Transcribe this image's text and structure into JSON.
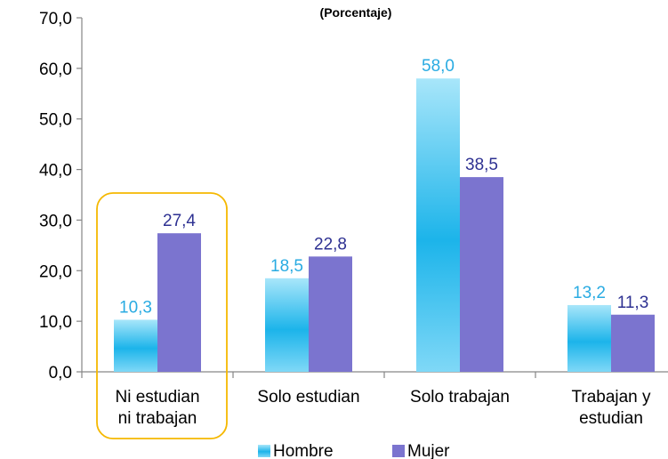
{
  "chart_data": {
    "type": "bar",
    "title": "(Porcentaje)",
    "categories": [
      [
        "Ni estudian",
        "ni trabajan"
      ],
      [
        "Solo estudian"
      ],
      [
        "Solo trabajan"
      ],
      [
        "Trabajan y",
        "estudian"
      ]
    ],
    "series": [
      {
        "name": "Hombre",
        "values": [
          10.3,
          18.5,
          58.0,
          13.2
        ],
        "color": "#1cb4ea",
        "label_color": "#29abe2"
      },
      {
        "name": "Mujer",
        "values": [
          27.4,
          22.8,
          38.5,
          11.3
        ],
        "color": "#7b74cf",
        "label_color": "#2e3192"
      }
    ],
    "ylim": [
      0,
      70
    ],
    "yticks": [
      0,
      10,
      20,
      30,
      40,
      50,
      60,
      70
    ],
    "tick_format": "comma-1-decimal",
    "grid": false,
    "legend_position": "bottom",
    "highlighted_category_index": 0,
    "highlight_color": "#f5b800"
  }
}
